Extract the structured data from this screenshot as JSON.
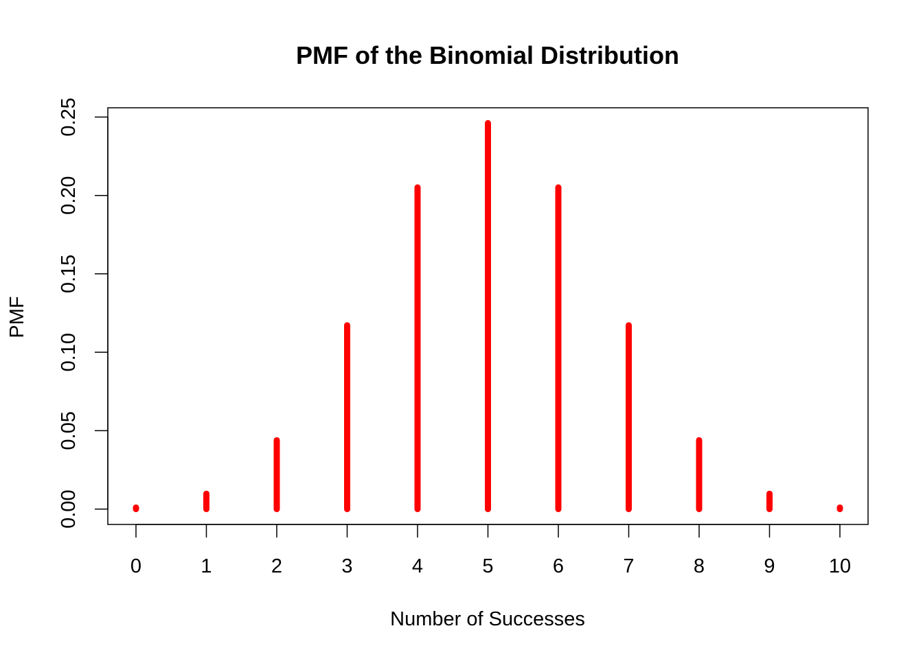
{
  "chart_data": {
    "type": "bar",
    "title": "PMF of the Binomial Distribution",
    "xlabel": "Number of Successes",
    "ylabel": "PMF",
    "x": [
      0,
      1,
      2,
      3,
      4,
      5,
      6,
      7,
      8,
      9,
      10
    ],
    "values": [
      0.001,
      0.0098,
      0.0439,
      0.1172,
      0.2051,
      0.2461,
      0.2051,
      0.1172,
      0.0439,
      0.0098,
      0.001
    ],
    "x_ticks": [
      "0",
      "1",
      "2",
      "3",
      "4",
      "5",
      "6",
      "7",
      "8",
      "9",
      "10"
    ],
    "y_ticks": [
      "0.00",
      "0.05",
      "0.10",
      "0.15",
      "0.20",
      "0.25"
    ],
    "xlim": [
      -0.4,
      10.4
    ],
    "ylim": [
      -0.0098,
      0.2559
    ],
    "grid": false,
    "bar_color": "#ff0000"
  }
}
